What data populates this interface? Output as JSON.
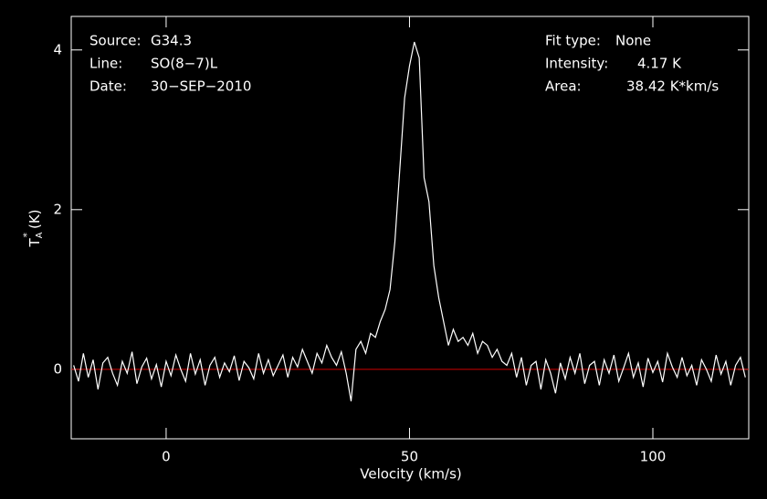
{
  "chart_data": {
    "type": "line",
    "xlabel": "Velocity (km/s)",
    "ylabel": {
      "main": "T",
      "sub": "A",
      "sup": "*",
      "unit": "(K)"
    },
    "info_left": [
      {
        "label": "Source:",
        "value": "G34.3"
      },
      {
        "label": "Line:",
        "value": "SO(8−7)L"
      },
      {
        "label": "Date:",
        "value": "30−SEP−2010"
      }
    ],
    "info_right": [
      {
        "label": "Fit type:",
        "value": "None"
      },
      {
        "label": "Intensity:",
        "value": "4.17 K"
      },
      {
        "label": "Area:",
        "value": "38.42 K*km/s"
      }
    ],
    "xlim": [
      -19.5,
      119.7
    ],
    "ylim": [
      -0.87,
      4.42
    ],
    "xticks": [
      0,
      50,
      100
    ],
    "yticks": [
      0,
      2,
      4
    ],
    "baseline": {
      "value": 0,
      "color": "#d00000"
    },
    "x": [
      -19,
      -18,
      -17,
      -16,
      -15,
      -14,
      -13,
      -12,
      -11,
      -10,
      -9,
      -8,
      -7,
      -6,
      -5,
      -4,
      -3,
      -2,
      -1,
      0,
      1,
      2,
      3,
      4,
      5,
      6,
      7,
      8,
      9,
      10,
      11,
      12,
      13,
      14,
      15,
      16,
      17,
      18,
      19,
      20,
      21,
      22,
      23,
      24,
      25,
      26,
      27,
      28,
      29,
      30,
      31,
      32,
      33,
      34,
      35,
      36,
      37,
      38,
      39,
      40,
      41,
      42,
      43,
      44,
      45,
      46,
      47,
      48,
      49,
      50,
      51,
      52,
      53,
      54,
      55,
      56,
      57,
      58,
      59,
      60,
      61,
      62,
      63,
      64,
      65,
      66,
      67,
      68,
      69,
      70,
      71,
      72,
      73,
      74,
      75,
      76,
      77,
      78,
      79,
      80,
      81,
      82,
      83,
      84,
      85,
      86,
      87,
      88,
      89,
      90,
      91,
      92,
      93,
      94,
      95,
      96,
      97,
      98,
      99,
      100,
      101,
      102,
      103,
      104,
      105,
      106,
      107,
      108,
      109,
      110,
      111,
      112,
      113,
      114,
      115,
      116,
      117,
      118,
      119
    ],
    "series": [
      {
        "color": "#ffffff",
        "values": [
          0.05,
          -0.15,
          0.2,
          -0.1,
          0.12,
          -0.25,
          0.08,
          0.15,
          -0.05,
          -0.2,
          0.1,
          -0.05,
          0.22,
          -0.18,
          0.03,
          0.14,
          -0.12,
          0.06,
          -0.22,
          0.1,
          -0.08,
          0.18,
          0.0,
          -0.15,
          0.2,
          -0.06,
          0.12,
          -0.2,
          0.05,
          0.15,
          -0.1,
          0.08,
          -0.03,
          0.17,
          -0.14,
          0.1,
          0.02,
          -0.12,
          0.2,
          -0.05,
          0.12,
          -0.08,
          0.05,
          0.18,
          -0.1,
          0.15,
          0.03,
          0.25,
          0.1,
          -0.05,
          0.2,
          0.08,
          0.3,
          0.15,
          0.05,
          0.22,
          -0.05,
          -0.4,
          0.25,
          0.35,
          0.2,
          0.45,
          0.4,
          0.6,
          0.75,
          1.0,
          1.6,
          2.5,
          3.4,
          3.8,
          4.1,
          3.9,
          2.4,
          2.1,
          1.3,
          0.9,
          0.6,
          0.3,
          0.5,
          0.35,
          0.4,
          0.3,
          0.45,
          0.2,
          0.35,
          0.3,
          0.15,
          0.25,
          0.1,
          0.05,
          0.2,
          -0.1,
          0.15,
          -0.2,
          0.05,
          0.1,
          -0.25,
          0.12,
          -0.05,
          -0.3,
          0.08,
          -0.12,
          0.15,
          -0.05,
          0.2,
          -0.18,
          0.05,
          0.1,
          -0.2,
          0.12,
          -0.05,
          0.18,
          -0.15,
          0.02,
          0.2,
          -0.1,
          0.08,
          -0.22,
          0.14,
          -0.04,
          0.1,
          -0.16,
          0.2,
          0.03,
          -0.1,
          0.15,
          -0.08,
          0.05,
          -0.2,
          0.12,
          0.0,
          -0.15,
          0.18,
          -0.06,
          0.1,
          -0.2,
          0.05,
          0.15,
          -0.1
        ]
      }
    ]
  }
}
